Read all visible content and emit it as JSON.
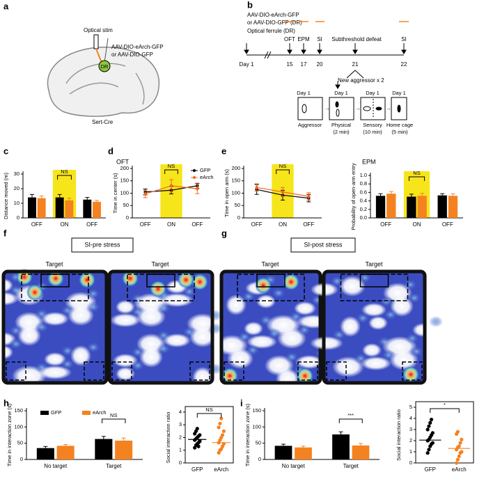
{
  "panel_labels": [
    "a",
    "b",
    "c",
    "d",
    "e",
    "f",
    "g",
    "h",
    "i"
  ],
  "schematic": {
    "stim": "Optical stim",
    "virus_1": "AAV-DIO-eArch-GFP",
    "virus_2": "or AAV-DIO-GFP",
    "region": "DR",
    "mouse": "Sert-Cre"
  },
  "timeline": {
    "virus_1": "AAV-DIO-eArch-GFP",
    "virus_2": "or AAV-DIO-GFP (DR)",
    "ferrule": "Optical ferrule (DR)",
    "events": [
      "OFT",
      "EPM",
      "SI",
      "Subthreshold defeat",
      "SI"
    ],
    "days": [
      "Day 1",
      "15",
      "17",
      "20",
      "21",
      "22"
    ],
    "aggressor_note": "New aggressor x 2",
    "steps": [
      {
        "day": "Day 1",
        "label": "Aggressor",
        "duration": null
      },
      {
        "day": "Day 1",
        "label": "Physical",
        "duration": "(2 min)"
      },
      {
        "day": "Day 1",
        "label": "Sensory",
        "duration": "(10 min)"
      },
      {
        "day": "Day 1",
        "label": "Home cage",
        "duration": "(5 min)"
      }
    ]
  },
  "heatmaps": {
    "pre": {
      "title": "SI-pre stress",
      "targets": [
        "Target",
        "Target"
      ]
    },
    "post": {
      "title": "SI-post stress",
      "targets": [
        "Target",
        "Target"
      ]
    }
  },
  "chart_data": [
    {
      "type": "bar",
      "ylabel": "Distance moved (m)",
      "categories": [
        "OFF",
        "ON",
        "OFF"
      ],
      "ylim": [
        0,
        30
      ],
      "yticks": [
        0,
        10,
        20,
        30
      ],
      "highlight": "ON",
      "highlight_color": "#f7e51c",
      "annotation": "NS",
      "series": [
        {
          "color": "#000000",
          "values": [
            14,
            14,
            12.5
          ],
          "errors": [
            2,
            2,
            1.5
          ]
        },
        {
          "color": "#f58220",
          "values": [
            13.5,
            12,
            11
          ],
          "errors": [
            1.5,
            1.5,
            1
          ]
        }
      ]
    },
    {
      "type": "line",
      "title": "OFT",
      "ylabel": "Time in center (s)",
      "categories": [
        "OFF",
        "ON",
        "OFF"
      ],
      "ylim": [
        0,
        200
      ],
      "yticks": [
        0,
        50,
        100,
        150,
        200
      ],
      "highlight": "ON",
      "highlight_color": "#f7e51c",
      "annotation": "NS",
      "legend": "upper right",
      "series": [
        {
          "name": "GFP",
          "color": "#000000",
          "values": [
            105,
            112,
            130
          ],
          "errors": [
            12,
            15,
            10
          ]
        },
        {
          "name": "eArch",
          "color": "#f26522",
          "values": [
            97,
            130,
            118
          ],
          "errors": [
            15,
            25,
            20
          ]
        }
      ]
    },
    {
      "type": "line",
      "ylabel": "Time in open arm (s)",
      "categories": [
        "OFF",
        "ON",
        "OFF"
      ],
      "ylim": [
        0,
        200
      ],
      "yticks": [
        0,
        50,
        100,
        150,
        200
      ],
      "highlight": "ON",
      "highlight_color": "#f7e51c",
      "annotation": "NS",
      "series": [
        {
          "color": "#000000",
          "values": [
            115,
            92,
            80
          ],
          "errors": [
            20,
            20,
            15
          ]
        },
        {
          "color": "#f26522",
          "values": [
            123,
            105,
            87
          ],
          "errors": [
            15,
            18,
            15
          ]
        }
      ]
    },
    {
      "type": "bar",
      "title": "EPM",
      "ylabel": "Probability of open-arm entry",
      "categories": [
        "OFF",
        "ON",
        "OFF"
      ],
      "ylim": [
        0,
        1
      ],
      "yticks": [
        {
          "value": 0,
          "label": "0.0"
        },
        0.2,
        0.4,
        0.6,
        0.8,
        {
          "value": 1,
          "label": "1.0"
        }
      ],
      "highlight": "ON",
      "highlight_color": "#f7e51c",
      "annotation": "NS",
      "series": [
        {
          "color": "#000000",
          "values": [
            0.52,
            0.5,
            0.53
          ],
          "errors": [
            0.05,
            0.06,
            0.04
          ]
        },
        {
          "color": "#f58220",
          "values": [
            0.57,
            0.52,
            0.52
          ],
          "errors": [
            0.05,
            0.06,
            0.05
          ]
        }
      ]
    },
    {
      "type": "bar",
      "ylabel": "Time in interaction zone (s)",
      "categories": [
        "No target",
        "Target"
      ],
      "ylim": [
        0,
        150
      ],
      "yticks": [
        0,
        50,
        100,
        150
      ],
      "annotation": "NS",
      "legend": "upper left",
      "series": [
        {
          "name": "GFP",
          "color": "#000000",
          "values": [
            35,
            63
          ],
          "errors": [
            5,
            8
          ]
        },
        {
          "name": "eArch",
          "color": "#f58220",
          "values": [
            42,
            58
          ],
          "errors": [
            4,
            8
          ]
        }
      ]
    },
    {
      "type": "strip",
      "ylabel": "Social interaction ratio",
      "categories": [
        "GFP",
        "eArch"
      ],
      "ylim": [
        0,
        4
      ],
      "yticks": [
        0,
        1,
        2,
        3,
        4
      ],
      "annotation": "NS",
      "colors": [
        "#000000",
        "#f58220"
      ],
      "means": [
        1.85,
        1.6
      ],
      "points": [
        [
          1.2,
          1.4,
          1.5,
          1.6,
          1.7,
          1.8,
          1.9,
          2.0,
          2.1,
          2.2,
          2.3,
          2.5,
          2.7,
          1.3,
          1.75
        ],
        [
          0.8,
          1.0,
          1.1,
          1.3,
          1.5,
          1.6,
          1.8,
          2.0,
          2.2,
          2.5,
          2.8,
          3.1,
          3.5
        ]
      ]
    },
    {
      "type": "bar",
      "ylabel": "Time in interaction zone (s)",
      "categories": [
        "No target",
        "Target"
      ],
      "ylim": [
        0,
        150
      ],
      "yticks": [
        0,
        50,
        100,
        150
      ],
      "annotation": "***",
      "series": [
        {
          "color": "#000000",
          "values": [
            42,
            77
          ],
          "errors": [
            5,
            8
          ]
        },
        {
          "color": "#f58220",
          "values": [
            37,
            43
          ],
          "errors": [
            4,
            6
          ]
        }
      ]
    },
    {
      "type": "strip",
      "ylabel": "Social interaction ratio",
      "categories": [
        "GFP",
        "eArch"
      ],
      "ylim": [
        0,
        5
      ],
      "yticks": [
        0,
        1,
        2,
        3,
        4,
        5
      ],
      "annotation": "*",
      "colors": [
        "#000000",
        "#f58220"
      ],
      "means": [
        2.05,
        1.3
      ],
      "points": [
        [
          0.9,
          1.2,
          1.5,
          1.7,
          1.8,
          2.0,
          2.1,
          2.3,
          2.5,
          2.7,
          3.0,
          3.3,
          3.6,
          3.9
        ],
        [
          0.0,
          0.3,
          0.6,
          0.9,
          1.0,
          1.2,
          1.4,
          1.5,
          1.8,
          2.1,
          2.6,
          2.8
        ]
      ]
    }
  ]
}
